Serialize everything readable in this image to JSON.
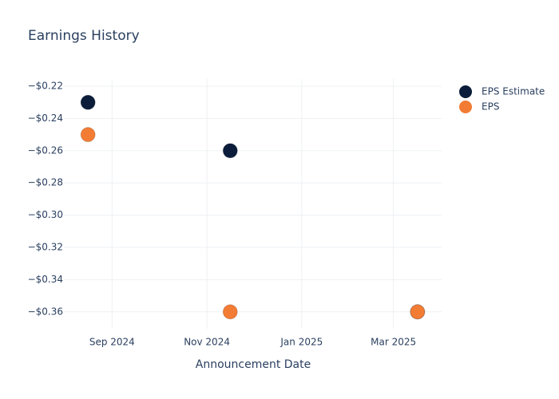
{
  "chart_data": {
    "type": "scatter",
    "title": "Earnings History",
    "x_label": "Announcement Date",
    "x": [
      "2024-08",
      "2024-11",
      "2025-03"
    ],
    "series": [
      {
        "name": "EPS Estimate",
        "color": "#0b1d3a",
        "values": [
          -0.23,
          -0.26,
          -0.36
        ]
      },
      {
        "name": "EPS",
        "color": "#f37c34",
        "values": [
          -0.25,
          -0.36,
          -0.36
        ]
      }
    ],
    "xlim": [
      "2024-08",
      "2025-03"
    ],
    "xticks": [
      {
        "value": "2024-09",
        "label": "Sep 2024"
      },
      {
        "value": "2024-11",
        "label": "Nov 2024"
      },
      {
        "value": "2025-01",
        "label": "Jan 2025"
      },
      {
        "value": "2025-03",
        "label": "Mar 2025"
      }
    ],
    "ylim": [
      -0.3705,
      -0.2155
    ],
    "yticks": [
      {
        "value": -0.22,
        "label": "−$0.22"
      },
      {
        "value": -0.24,
        "label": "−$0.24"
      },
      {
        "value": -0.26,
        "label": "−$0.26"
      },
      {
        "value": -0.28,
        "label": "−$0.28"
      },
      {
        "value": -0.3,
        "label": "−$0.30"
      },
      {
        "value": -0.32,
        "label": "−$0.32"
      },
      {
        "value": -0.34,
        "label": "−$0.34"
      },
      {
        "value": -0.36,
        "label": "−$0.36"
      }
    ],
    "grid": true,
    "legend": "top-right"
  }
}
